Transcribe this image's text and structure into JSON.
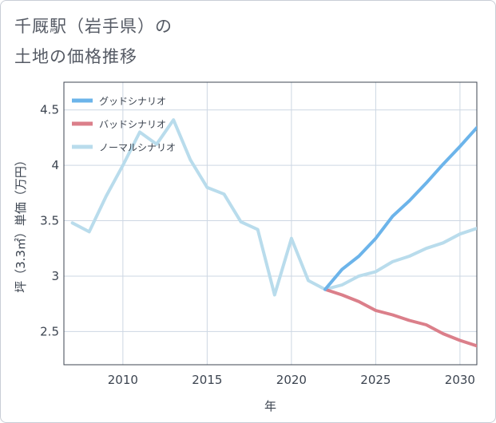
{
  "title": {
    "line1": "千厩駅（岩手県）の",
    "line2": "土地の価格推移"
  },
  "chart_data": {
    "type": "line",
    "title": "千厩駅（岩手県）の土地の価格推移",
    "xlabel": "年",
    "ylabel": "坪（3.3㎡）単価（万円）",
    "xlim": [
      2006.5,
      2031
    ],
    "ylim": [
      2.2,
      4.75
    ],
    "xticks": [
      2010,
      2015,
      2020,
      2025,
      2030
    ],
    "xtick_labels": [
      "2010",
      "2015",
      "2020",
      "2025",
      "2030"
    ],
    "yticks": [
      2.5,
      3,
      3.5,
      4,
      4.5
    ],
    "ytick_labels": [
      "2.5",
      "3",
      "3.5",
      "4",
      "4.5"
    ],
    "grid": true,
    "legend_position": "top-left",
    "series": [
      {
        "name": "グッドシナリオ",
        "color": "#6cb4ea",
        "x": [
          2022,
          2023,
          2024,
          2025,
          2026,
          2027,
          2028,
          2029,
          2030,
          2031
        ],
        "y": [
          2.88,
          3.06,
          3.18,
          3.34,
          3.54,
          3.68,
          3.84,
          4.01,
          4.17,
          4.34
        ]
      },
      {
        "name": "バッドシナリオ",
        "color": "#db7f8a",
        "x": [
          2022,
          2023,
          2024,
          2025,
          2026,
          2027,
          2028,
          2029,
          2030,
          2031
        ],
        "y": [
          2.88,
          2.83,
          2.77,
          2.69,
          2.65,
          2.6,
          2.56,
          2.48,
          2.42,
          2.37
        ]
      },
      {
        "name": "ノーマルシナリオ",
        "color": "#b9dcec",
        "x": [
          2007,
          2008,
          2009,
          2010,
          2011,
          2012,
          2013,
          2014,
          2015,
          2016,
          2017,
          2018,
          2019,
          2020,
          2021,
          2022,
          2023,
          2024,
          2025,
          2026,
          2027,
          2028,
          2029,
          2030,
          2031
        ],
        "y": [
          3.48,
          3.4,
          3.72,
          4.0,
          4.3,
          4.19,
          4.41,
          4.05,
          3.8,
          3.74,
          3.49,
          3.42,
          2.83,
          3.34,
          2.96,
          2.88,
          2.92,
          3.0,
          3.04,
          3.13,
          3.18,
          3.25,
          3.3,
          3.38,
          3.43
        ]
      }
    ]
  }
}
